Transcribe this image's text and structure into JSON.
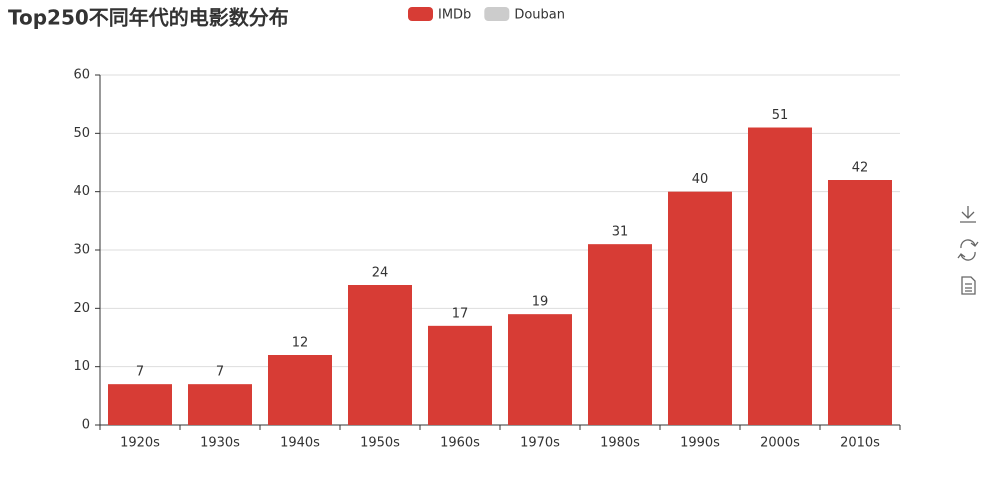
{
  "chart_data": {
    "type": "bar",
    "title": "Top250不同年代的电影数分布",
    "categories": [
      "1920s",
      "1930s",
      "1940s",
      "1950s",
      "1960s",
      "1970s",
      "1980s",
      "1990s",
      "2000s",
      "2010s"
    ],
    "series": [
      {
        "name": "IMDb",
        "color": "#d73c35",
        "values": [
          7,
          7,
          12,
          24,
          17,
          19,
          31,
          40,
          51,
          42
        ]
      }
    ],
    "legend": [
      {
        "name": "IMDb",
        "color": "#d73c35"
      },
      {
        "name": "Douban",
        "color": "#cccccc"
      }
    ],
    "ylim": [
      0,
      60
    ],
    "yticks": [
      0,
      10,
      20,
      30,
      40,
      50,
      60
    ],
    "grid": true
  }
}
